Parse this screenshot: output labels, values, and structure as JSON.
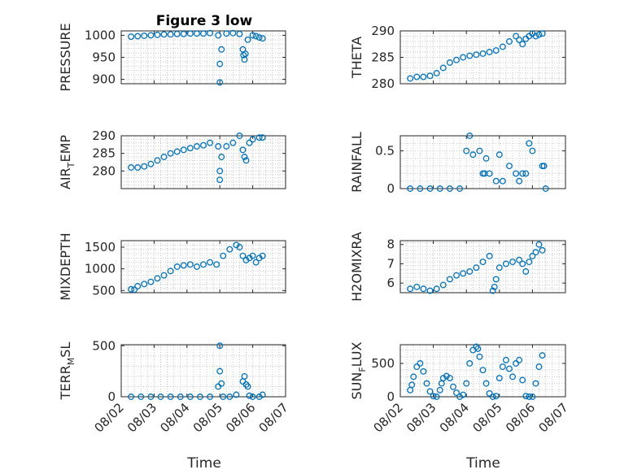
{
  "figure": {
    "title": "Figure 3 low",
    "xlabel": "Time",
    "marker_color": "#0072BD",
    "x_ticks": [
      2,
      3,
      4,
      5,
      6,
      7
    ],
    "x_tick_labels": [
      "08/02",
      "08/03",
      "08/04",
      "08/05",
      "08/06",
      "08/07"
    ]
  },
  "chart_data": [
    {
      "type": "scatter",
      "ylabel": "PRESSURE",
      "xlim": [
        2,
        7
      ],
      "ylim": [
        890,
        1010
      ],
      "yticks": [
        900,
        950,
        1000
      ],
      "grid": true,
      "x": [
        2.3,
        2.5,
        2.7,
        2.9,
        3.1,
        3.3,
        3.5,
        3.7,
        3.9,
        4.1,
        4.3,
        4.5,
        4.7,
        4.95,
        5.0,
        5.0,
        5.05,
        5.2,
        5.4,
        5.6,
        5.7,
        5.72,
        5.75,
        5.78,
        5.85,
        6.0,
        6.1,
        6.2,
        6.3
      ],
      "y": [
        997,
        998,
        999,
        1000,
        1001,
        1002,
        1002,
        1003,
        1003,
        1004,
        1004,
        1004,
        1005,
        1000,
        935,
        893,
        968,
        1004,
        1005,
        1003,
        968,
        955,
        945,
        958,
        990,
        1000,
        998,
        995,
        993
      ]
    },
    {
      "type": "scatter",
      "ylabel": "THETA",
      "xlim": [
        2,
        7
      ],
      "ylim": [
        280,
        290
      ],
      "yticks": [
        280,
        285,
        290
      ],
      "grid": true,
      "x": [
        2.3,
        2.5,
        2.7,
        2.9,
        3.1,
        3.3,
        3.5,
        3.7,
        3.9,
        4.1,
        4.3,
        4.5,
        4.7,
        4.9,
        5.1,
        5.3,
        5.5,
        5.6,
        5.7,
        5.8,
        5.9,
        6.0,
        6.1,
        6.2,
        6.3
      ],
      "y": [
        281,
        281.3,
        281.3,
        281.5,
        282,
        283,
        284,
        284.5,
        285,
        285.3,
        285.5,
        285.7,
        286,
        286.3,
        287,
        288,
        289,
        288.3,
        287.5,
        288.5,
        289,
        289.5,
        289,
        289.3,
        289.5
      ]
    },
    {
      "type": "scatter",
      "ylabel": "AIR_TEMP",
      "xlim": [
        2,
        7
      ],
      "ylim": [
        275,
        290
      ],
      "yticks": [
        280,
        285,
        290
      ],
      "grid": true,
      "x": [
        2.3,
        2.5,
        2.7,
        2.9,
        3.1,
        3.3,
        3.5,
        3.7,
        3.9,
        4.1,
        4.3,
        4.5,
        4.7,
        4.95,
        5.0,
        5.0,
        5.05,
        5.2,
        5.4,
        5.6,
        5.7,
        5.75,
        5.8,
        5.9,
        6.0,
        6.2,
        6.3
      ],
      "y": [
        281,
        281,
        281.3,
        282,
        283,
        284,
        285,
        285.5,
        286,
        286.5,
        287,
        287.3,
        288,
        287,
        280,
        277.5,
        284,
        287,
        288,
        290,
        286,
        284,
        283,
        288,
        289,
        289.5,
        289.5
      ]
    },
    {
      "type": "scatter",
      "ylabel": "RAINFALL",
      "xlim": [
        2,
        7
      ],
      "ylim": [
        0,
        0.7
      ],
      "yticks": [
        0,
        0.5
      ],
      "grid": true,
      "x": [
        2.3,
        2.6,
        2.9,
        3.2,
        3.5,
        3.8,
        4.0,
        4.1,
        4.2,
        4.4,
        4.5,
        4.6,
        4.7,
        4.9,
        5.0,
        5.1,
        5.3,
        5.5,
        5.6,
        5.7,
        5.9,
        6.0,
        6.3,
        6.35,
        6.4,
        4.55,
        5.8
      ],
      "y": [
        0,
        0,
        0,
        0,
        0,
        0,
        0.5,
        0.7,
        0.45,
        0.5,
        0.2,
        0.4,
        0.2,
        0.1,
        0.45,
        0.1,
        0.3,
        0.2,
        0.1,
        0.2,
        0.6,
        0.5,
        0.3,
        0.3,
        0,
        0.2,
        0.2
      ]
    },
    {
      "type": "scatter",
      "ylabel": "MIXDEPTH",
      "xlim": [
        2,
        7
      ],
      "ylim": [
        450,
        1650
      ],
      "yticks": [
        500,
        1000,
        1500
      ],
      "grid": true,
      "x": [
        2.3,
        2.4,
        2.5,
        2.7,
        2.9,
        3.1,
        3.3,
        3.5,
        3.7,
        3.9,
        4.1,
        4.3,
        4.5,
        4.7,
        4.9,
        5.1,
        5.3,
        5.5,
        5.6,
        5.7,
        5.8,
        5.9,
        6.0,
        6.1,
        6.2,
        6.3
      ],
      "y": [
        530,
        520,
        600,
        650,
        700,
        780,
        850,
        950,
        1050,
        1080,
        1100,
        1050,
        1100,
        1150,
        1100,
        1300,
        1450,
        1550,
        1500,
        1300,
        1200,
        1250,
        1300,
        1150,
        1250,
        1300
      ]
    },
    {
      "type": "scatter",
      "ylabel": "H2OMIXRA",
      "xlim": [
        2,
        7
      ],
      "ylim": [
        5.5,
        8.2
      ],
      "yticks": [
        6,
        7,
        8
      ],
      "grid": true,
      "x": [
        2.3,
        2.5,
        2.7,
        2.9,
        3.1,
        3.3,
        3.5,
        3.7,
        3.9,
        4.1,
        4.3,
        4.5,
        4.7,
        4.8,
        4.85,
        4.9,
        5.0,
        5.2,
        5.4,
        5.6,
        5.7,
        5.8,
        5.9,
        6.0,
        6.1,
        6.2,
        6.3
      ],
      "y": [
        5.7,
        5.8,
        5.7,
        5.6,
        5.7,
        5.9,
        6.2,
        6.4,
        6.5,
        6.6,
        6.8,
        7.1,
        7.4,
        5.6,
        5.8,
        6.2,
        6.8,
        7.0,
        7.1,
        7.2,
        7.0,
        6.6,
        7.1,
        7.4,
        7.6,
        8.0,
        7.7
      ]
    },
    {
      "type": "scatter",
      "ylabel": "TERR_MSL",
      "xlim": [
        2,
        7
      ],
      "ylim": [
        0,
        510
      ],
      "yticks": [
        0,
        500
      ],
      "grid": true,
      "x": [
        2.3,
        2.6,
        2.9,
        3.2,
        3.5,
        3.8,
        4.1,
        4.4,
        4.7,
        4.95,
        5.0,
        5.0,
        5.05,
        5.1,
        5.3,
        5.5,
        5.7,
        5.75,
        5.8,
        5.85,
        5.9,
        6.0,
        6.2,
        6.3
      ],
      "y": [
        0,
        0,
        0,
        0,
        0,
        0,
        0,
        0,
        0,
        100,
        500,
        250,
        130,
        0,
        0,
        20,
        150,
        200,
        120,
        100,
        10,
        0,
        0,
        20
      ]
    },
    {
      "type": "scatter",
      "ylabel": "SUN_FLUX",
      "xlim": [
        2,
        7
      ],
      "ylim": [
        0,
        780
      ],
      "yticks": [
        0,
        500
      ],
      "grid": true,
      "x": [
        2.3,
        2.35,
        2.4,
        2.5,
        2.6,
        2.7,
        2.8,
        2.9,
        3.0,
        3.1,
        3.2,
        3.25,
        3.3,
        3.4,
        3.5,
        3.6,
        3.7,
        3.8,
        3.9,
        4.0,
        4.1,
        4.2,
        4.3,
        4.35,
        4.4,
        4.5,
        4.6,
        4.7,
        4.8,
        4.9,
        5.0,
        5.1,
        5.2,
        5.3,
        5.4,
        5.5,
        5.6,
        5.7,
        5.8,
        5.9,
        6.0,
        6.1,
        6.2,
        6.3
      ],
      "y": [
        100,
        180,
        300,
        450,
        500,
        380,
        200,
        80,
        10,
        0,
        100,
        200,
        280,
        310,
        280,
        150,
        60,
        0,
        30,
        200,
        500,
        700,
        750,
        720,
        600,
        400,
        200,
        50,
        0,
        10,
        280,
        450,
        550,
        420,
        300,
        500,
        550,
        250,
        10,
        0,
        0,
        200,
        450,
        620
      ]
    }
  ]
}
